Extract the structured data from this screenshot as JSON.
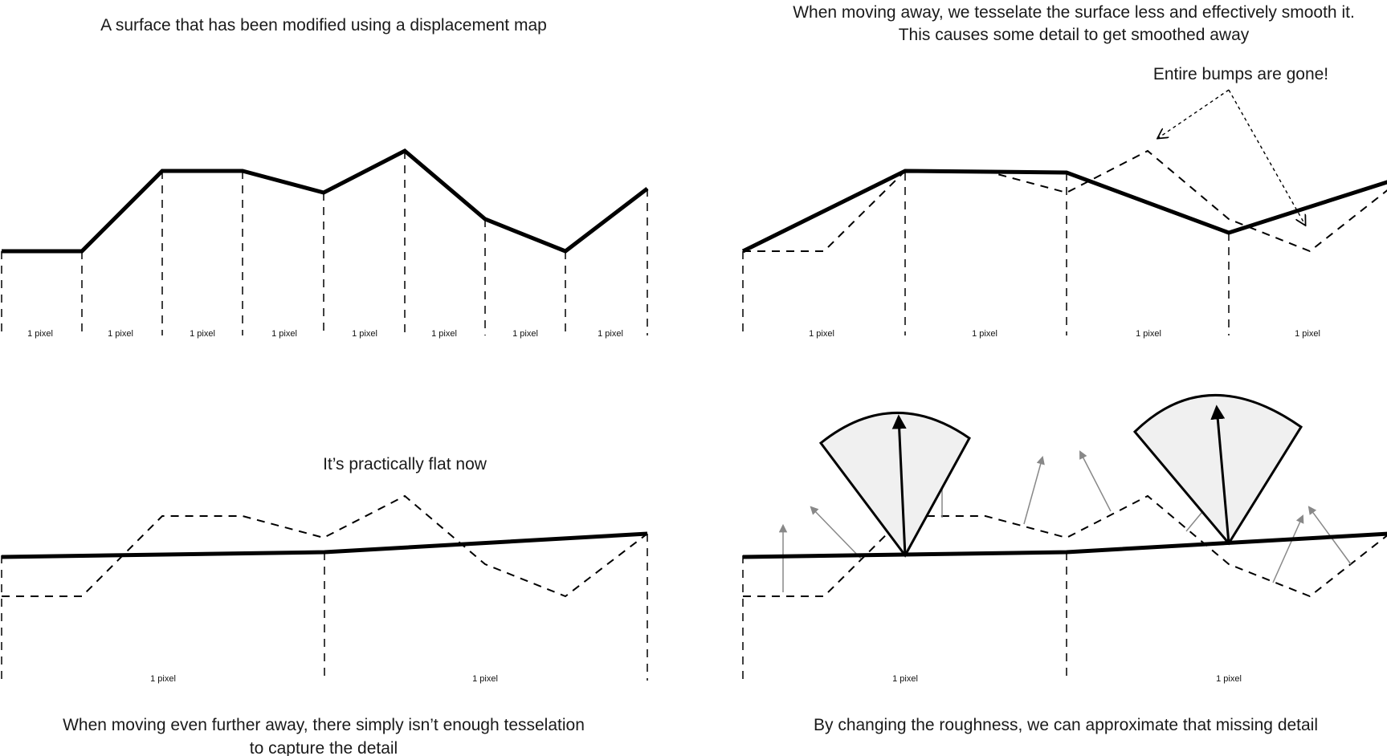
{
  "panels": {
    "top_left": {
      "caption": [
        "A surface that has been modified using a displacement map"
      ],
      "pixel_label": "1 pixel"
    },
    "top_right": {
      "caption": [
        "When moving away, we tesselate the surface less and effectively smooth it.",
        "This causes some detail to get smoothed away"
      ],
      "annotation": "Entire bumps are gone!",
      "pixel_label": "1 pixel"
    },
    "bottom_left": {
      "annotation": "It’s practically flat now",
      "caption": [
        "When moving even further away, there simply isn’t enough tesselation",
        "to capture the detail"
      ],
      "pixel_label": "1 pixel"
    },
    "bottom_right": {
      "caption": [
        "By changing the roughness, we can approximate that missing detail"
      ],
      "pixel_label": "1 pixel"
    }
  },
  "colors": {
    "line": "#000000",
    "lobe_fill": "#f0f0f0",
    "normal_arrows": "#888888"
  }
}
